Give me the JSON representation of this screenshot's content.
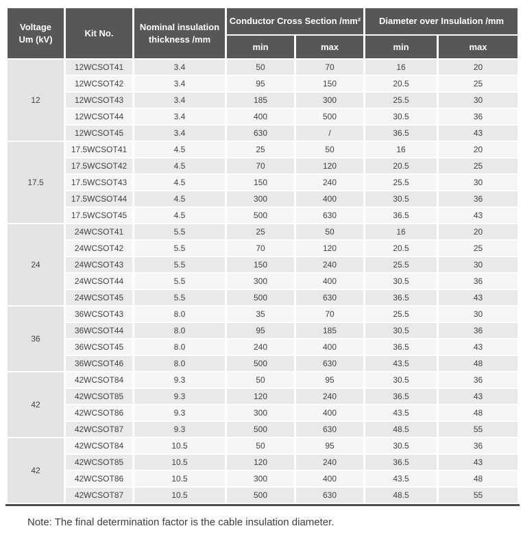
{
  "table": {
    "headers": {
      "voltage": "Voltage\nUm (kV)",
      "kit": "Kit No.",
      "nominal": "Nominal insulation\nthickness /mm",
      "conductor_cross_section": "Conductor Cross Section /mm²",
      "diameter_over_insulation": "Diameter over Insulation /mm",
      "min": "min",
      "max": "max"
    },
    "groups": [
      {
        "voltage": "12",
        "rows": [
          {
            "kit": "12WCSOT41",
            "thickness": "3.4",
            "cmin": "50",
            "cmax": "70",
            "dmin": "16",
            "dmax": "20"
          },
          {
            "kit": "12WCSOT42",
            "thickness": "3.4",
            "cmin": "95",
            "cmax": "150",
            "dmin": "20.5",
            "dmax": "25"
          },
          {
            "kit": "12WCSOT43",
            "thickness": "3.4",
            "cmin": "185",
            "cmax": "300",
            "dmin": "25.5",
            "dmax": "30"
          },
          {
            "kit": "12WCSOT44",
            "thickness": "3.4",
            "cmin": "400",
            "cmax": "500",
            "dmin": "30.5",
            "dmax": "36"
          },
          {
            "kit": "12WCSOT45",
            "thickness": "3.4",
            "cmin": "630",
            "cmax": "/",
            "dmin": "36.5",
            "dmax": "43"
          }
        ]
      },
      {
        "voltage": "17.5",
        "rows": [
          {
            "kit": "17.5WCSOT41",
            "thickness": "4.5",
            "cmin": "25",
            "cmax": "50",
            "dmin": "16",
            "dmax": "20"
          },
          {
            "kit": "17.5WCSOT42",
            "thickness": "4.5",
            "cmin": "70",
            "cmax": "120",
            "dmin": "20.5",
            "dmax": "25"
          },
          {
            "kit": "17.5WCSOT43",
            "thickness": "4.5",
            "cmin": "150",
            "cmax": "240",
            "dmin": "25.5",
            "dmax": "30"
          },
          {
            "kit": "17.5WCSOT44",
            "thickness": "4.5",
            "cmin": "300",
            "cmax": "400",
            "dmin": "30.5",
            "dmax": "36"
          },
          {
            "kit": "17.5WCSOT45",
            "thickness": "4.5",
            "cmin": "500",
            "cmax": "630",
            "dmin": "36.5",
            "dmax": "43"
          }
        ]
      },
      {
        "voltage": "24",
        "rows": [
          {
            "kit": "24WCSOT41",
            "thickness": "5.5",
            "cmin": "25",
            "cmax": "50",
            "dmin": "16",
            "dmax": "20"
          },
          {
            "kit": "24WCSOT42",
            "thickness": "5.5",
            "cmin": "70",
            "cmax": "120",
            "dmin": "20.5",
            "dmax": "25"
          },
          {
            "kit": "24WCSOT43",
            "thickness": "5.5",
            "cmin": "150",
            "cmax": "240",
            "dmin": "25.5",
            "dmax": "30"
          },
          {
            "kit": "24WCSOT44",
            "thickness": "5.5",
            "cmin": "300",
            "cmax": "400",
            "dmin": "30.5",
            "dmax": "36"
          },
          {
            "kit": "24WCSOT45",
            "thickness": "5.5",
            "cmin": "500",
            "cmax": "630",
            "dmin": "36.5",
            "dmax": "43"
          }
        ]
      },
      {
        "voltage": "36",
        "rows": [
          {
            "kit": "36WCSOT43",
            "thickness": "8.0",
            "cmin": "35",
            "cmax": "70",
            "dmin": "25.5",
            "dmax": "30"
          },
          {
            "kit": "36WCSOT44",
            "thickness": "8.0",
            "cmin": "95",
            "cmax": "185",
            "dmin": "30.5",
            "dmax": "36"
          },
          {
            "kit": "36WCSOT45",
            "thickness": "8.0",
            "cmin": "240",
            "cmax": "400",
            "dmin": "36.5",
            "dmax": "43"
          },
          {
            "kit": "36WCSOT46",
            "thickness": "8.0",
            "cmin": "500",
            "cmax": "630",
            "dmin": "43.5",
            "dmax": "48"
          }
        ]
      },
      {
        "voltage": "42",
        "rows": [
          {
            "kit": "42WCSOT84",
            "thickness": "9.3",
            "cmin": "50",
            "cmax": "95",
            "dmin": "30.5",
            "dmax": "36"
          },
          {
            "kit": "42WCSOT85",
            "thickness": "9.3",
            "cmin": "120",
            "cmax": "240",
            "dmin": "36.5",
            "dmax": "43"
          },
          {
            "kit": "42WCSOT86",
            "thickness": "9.3",
            "cmin": "300",
            "cmax": "400",
            "dmin": "43.5",
            "dmax": "48"
          },
          {
            "kit": "42WCSOT87",
            "thickness": "9.3",
            "cmin": "500",
            "cmax": "630",
            "dmin": "48.5",
            "dmax": "55"
          }
        ]
      },
      {
        "voltage": "42",
        "rows": [
          {
            "kit": "42WCSOT84",
            "thickness": "10.5",
            "cmin": "50",
            "cmax": "95",
            "dmin": "30.5",
            "dmax": "36"
          },
          {
            "kit": "42WCSOT85",
            "thickness": "10.5",
            "cmin": "120",
            "cmax": "240",
            "dmin": "36.5",
            "dmax": "43"
          },
          {
            "kit": "42WCSOT86",
            "thickness": "10.5",
            "cmin": "300",
            "cmax": "400",
            "dmin": "43.5",
            "dmax": "48"
          },
          {
            "kit": "42WCSOT87",
            "thickness": "10.5",
            "cmin": "500",
            "cmax": "630",
            "dmin": "48.5",
            "dmax": "55"
          }
        ]
      }
    ]
  },
  "note": "Note: The final determination factor is the cable insulation diameter.",
  "colors": {
    "header_bg": "#595656",
    "header_text": "#ffffff",
    "row_dark": "#e9e9e9",
    "row_light": "#f6f6f6",
    "voltage_cell_bg": "#e4e4e4",
    "body_text": "#414141",
    "bottom_rule": "#4c4c4c"
  }
}
